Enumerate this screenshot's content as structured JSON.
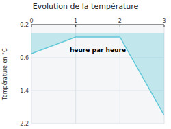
{
  "chart_data": {
    "type": "area",
    "title": "Evolution de la température",
    "ylabel": "Température en °C",
    "annotation": "heure par heure",
    "x": [
      0,
      1,
      2,
      3
    ],
    "values": [
      -0.5,
      -0.1,
      -0.1,
      -2.0
    ],
    "color": "#60c8d8",
    "xlim": [
      0,
      3
    ],
    "ylim": [
      -2.2,
      0.2
    ],
    "xticks": [
      0,
      1,
      2,
      3
    ],
    "yticks": [
      0.2,
      -0.6,
      -1.4,
      -2.2
    ],
    "grid": true
  }
}
